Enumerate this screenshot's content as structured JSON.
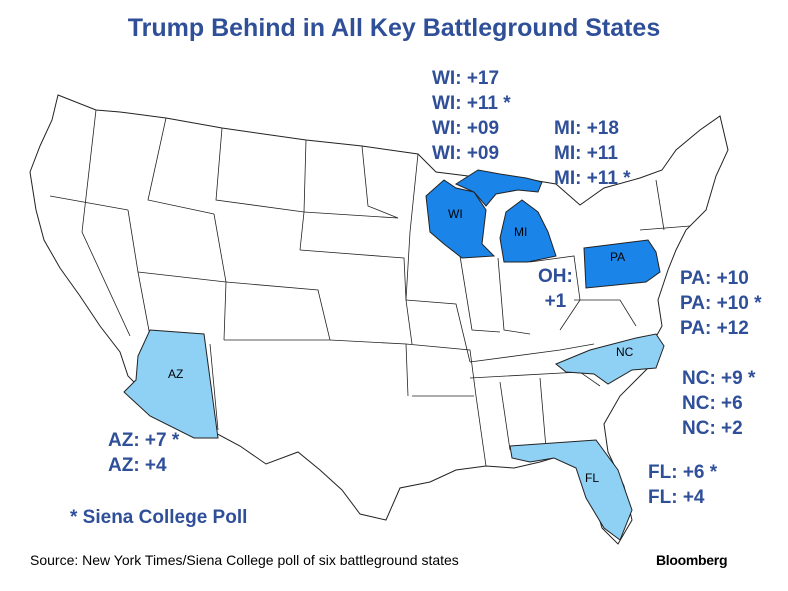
{
  "title": "Trump Behind in All Key Battleground States",
  "colors": {
    "dark_blue": "#1b84e8",
    "light_blue": "#8fd0f5",
    "text": "#2f4f99"
  },
  "states": [
    {
      "abbr": "WI",
      "shade": "dark",
      "polls": [
        "WI: +17",
        "WI: +11 *",
        "WI: +09",
        "WI: +09"
      ]
    },
    {
      "abbr": "MI",
      "shade": "dark",
      "polls": [
        "MI: +18",
        "MI: +11",
        "MI: +11 *"
      ]
    },
    {
      "abbr": "PA",
      "shade": "dark",
      "polls": [
        "PA: +10",
        "PA: +10 *",
        "PA: +12"
      ]
    },
    {
      "abbr": "OH",
      "shade": "none",
      "polls": [
        "OH:",
        "+1"
      ]
    },
    {
      "abbr": "NC",
      "shade": "light",
      "polls": [
        "NC: +9 *",
        "NC: +6",
        "NC: +2"
      ]
    },
    {
      "abbr": "AZ",
      "shade": "light",
      "polls": [
        "AZ: +7 *",
        "AZ: +4"
      ]
    },
    {
      "abbr": "FL",
      "shade": "light",
      "polls": [
        "FL: +6 *",
        "FL: +4"
      ]
    }
  ],
  "footnote": "* Siena College Poll",
  "source": "Source: New York Times/Siena College poll of six battleground states",
  "brand": "Bloomberg"
}
